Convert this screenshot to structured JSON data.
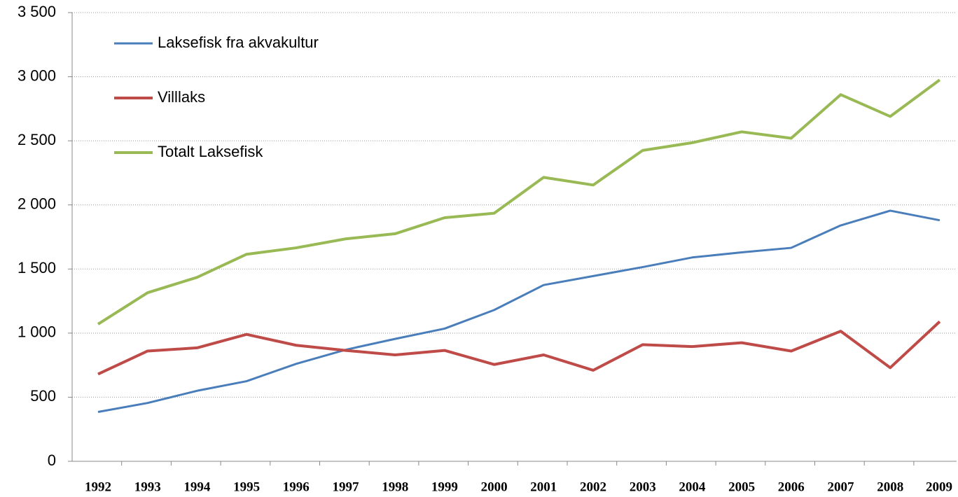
{
  "chart_data": {
    "type": "line",
    "categories": [
      "1992",
      "1993",
      "1994",
      "1995",
      "1996",
      "1997",
      "1998",
      "1999",
      "2000",
      "2001",
      "2002",
      "2003",
      "2004",
      "2005",
      "2006",
      "2007",
      "2008",
      "2009"
    ],
    "series": [
      {
        "name": "Laksefisk fra akvakultur",
        "color": "#4a7ebb",
        "values": [
          385,
          455,
          550,
          625,
          760,
          870,
          955,
          1035,
          1180,
          1375,
          1445,
          1515,
          1590,
          1630,
          1665,
          1840,
          1955,
          1880
        ]
      },
      {
        "name": "Villlaks",
        "color": "#be4b48",
        "values": [
          680,
          860,
          885,
          990,
          905,
          865,
          830,
          865,
          755,
          830,
          710,
          910,
          895,
          925,
          860,
          1015,
          730,
          1090
        ]
      },
      {
        "name": "Totalt Laksefisk",
        "color": "#98b954",
        "values": [
          1070,
          1315,
          1435,
          1615,
          1665,
          1735,
          1775,
          1900,
          1935,
          2215,
          2155,
          2425,
          2485,
          2570,
          2520,
          2860,
          2690,
          2975
        ]
      }
    ],
    "ylim": [
      0,
      3500
    ],
    "yticks": [
      0,
      500,
      {
        "value": 1000,
        "label": "1 000"
      },
      {
        "value": 1500,
        "label": "1 500"
      },
      {
        "value": 2000,
        "label": "2 000"
      },
      {
        "value": 2500,
        "label": "2 500"
      },
      {
        "value": 3000,
        "label": "3 000"
      },
      {
        "value": 3500,
        "label": "3 500"
      }
    ],
    "grid": true,
    "legend": "upper left"
  }
}
